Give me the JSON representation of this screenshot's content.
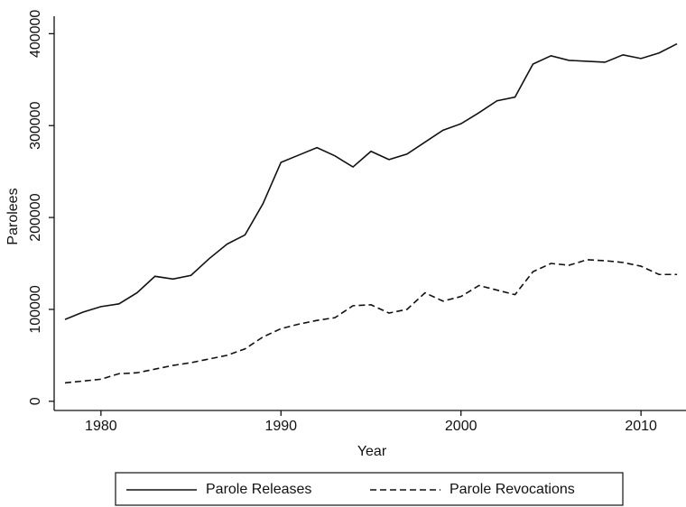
{
  "chart_data": {
    "type": "line",
    "x_label": "Year",
    "y_label": "Parolees",
    "x": [
      1978,
      1979,
      1980,
      1981,
      1982,
      1983,
      1984,
      1985,
      1986,
      1987,
      1988,
      1989,
      1990,
      1991,
      1992,
      1993,
      1994,
      1995,
      1996,
      1997,
      1998,
      1999,
      2000,
      2001,
      2002,
      2003,
      2004,
      2005,
      2006,
      2007,
      2008,
      2009,
      2010,
      2011,
      2012
    ],
    "series": [
      {
        "name": "Parole Releases",
        "color": "#111111",
        "line_style": "solid",
        "values": [
          89000,
          97000,
          103000,
          106000,
          118000,
          136000,
          133000,
          137000,
          155000,
          171000,
          181000,
          215000,
          260000,
          268000,
          276000,
          267000,
          255000,
          272000,
          263000,
          269000,
          282000,
          295000,
          302000,
          314000,
          327000,
          331000,
          367000,
          376000,
          371000,
          370000,
          369000,
          377000,
          373000,
          379000,
          389000
        ]
      },
      {
        "name": "Parole Revocations",
        "color": "#111111",
        "line_style": "dashed",
        "values": [
          20000,
          22000,
          24000,
          30000,
          31000,
          35000,
          39000,
          42000,
          46000,
          50000,
          57000,
          70000,
          79000,
          84000,
          88000,
          91000,
          104000,
          105000,
          96000,
          100000,
          118000,
          109000,
          114000,
          126000,
          121000,
          116000,
          141000,
          150000,
          148000,
          154000,
          153000,
          151000,
          147000,
          138000,
          138000
        ]
      }
    ],
    "xlim": [
      1977.4,
      2012.5
    ],
    "xticks": [
      1980,
      1990,
      2000,
      2010
    ],
    "ylim": [
      -10000,
      419000
    ],
    "yticks": [
      0,
      100000,
      200000,
      300000,
      400000
    ],
    "grid": false,
    "legend_position": "bottom"
  }
}
